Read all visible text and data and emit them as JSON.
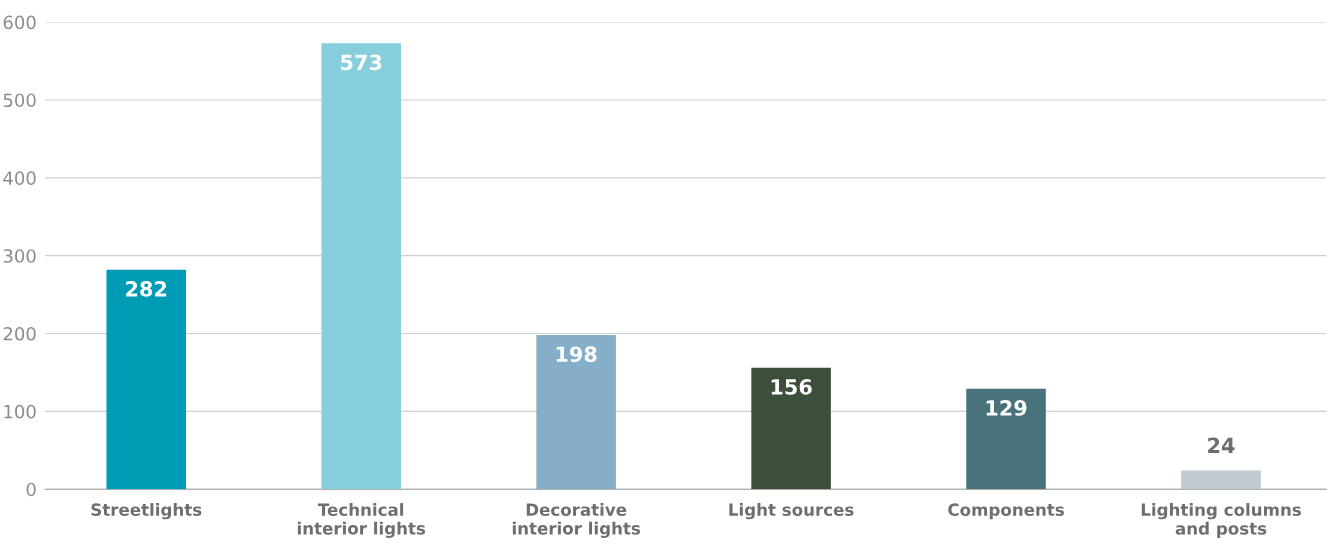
{
  "chart_data": {
    "type": "bar",
    "categories": [
      "Streetlights",
      "Technical\ninterior lights",
      "Decorative\ninterior lights",
      "Light sources",
      "Components",
      "Lighting columns\nand posts"
    ],
    "values": [
      282,
      573,
      198,
      156,
      129,
      24
    ],
    "colors": [
      "#009bb5",
      "#86cedc",
      "#85afc8",
      "#3b4f3b",
      "#4a727b",
      "#bfc9cf"
    ],
    "ylim": [
      0,
      600
    ],
    "yticks": [
      0,
      100,
      200,
      300,
      400,
      500,
      600
    ],
    "grid": "y",
    "data_labels": true
  }
}
